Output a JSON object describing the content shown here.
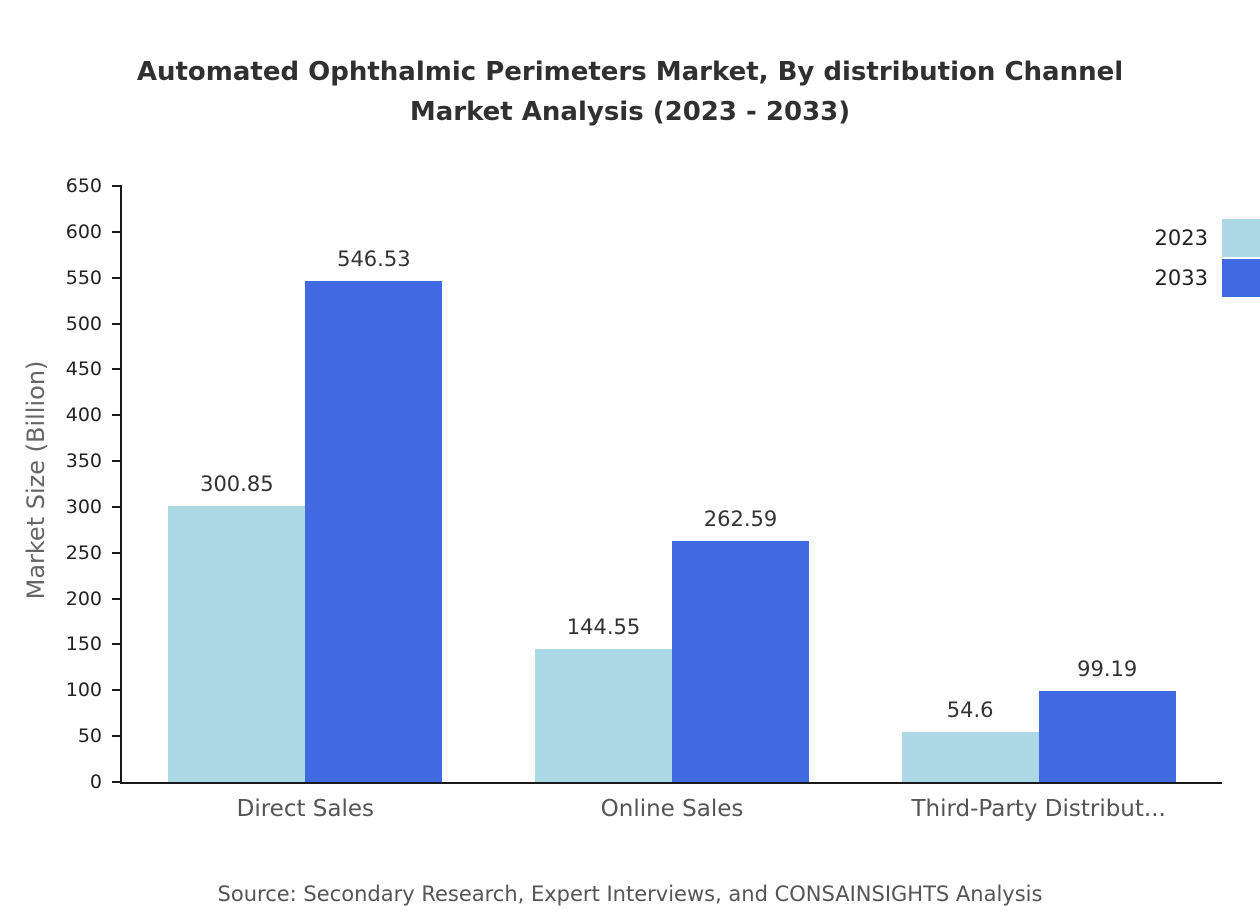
{
  "chart_data": {
    "type": "bar",
    "title": "Automated Ophthalmic Perimeters Market, By distribution Channel Market Analysis (2023 - 2033)",
    "title_lines": [
      "Automated Ophthalmic Perimeters Market, By distribution Channel",
      "Market Analysis (2023 - 2033)"
    ],
    "categories": [
      "Direct Sales",
      "Online Sales",
      "Third-Party Distribut..."
    ],
    "series": [
      {
        "name": "2023",
        "color": "#add8e6",
        "values": [
          300.85,
          144.55,
          54.6
        ]
      },
      {
        "name": "2033",
        "color": "#4169e1",
        "values": [
          546.53,
          262.59,
          99.19
        ]
      }
    ],
    "xlabel": "",
    "ylabel": "Market Size (Billion)",
    "ylim": [
      0,
      650
    ],
    "ytick_step": 50,
    "grid": false,
    "legend_position": "top-right",
    "source": "Source: Secondary Research, Expert Interviews, and CONSAINSIGHTS Analysis"
  }
}
